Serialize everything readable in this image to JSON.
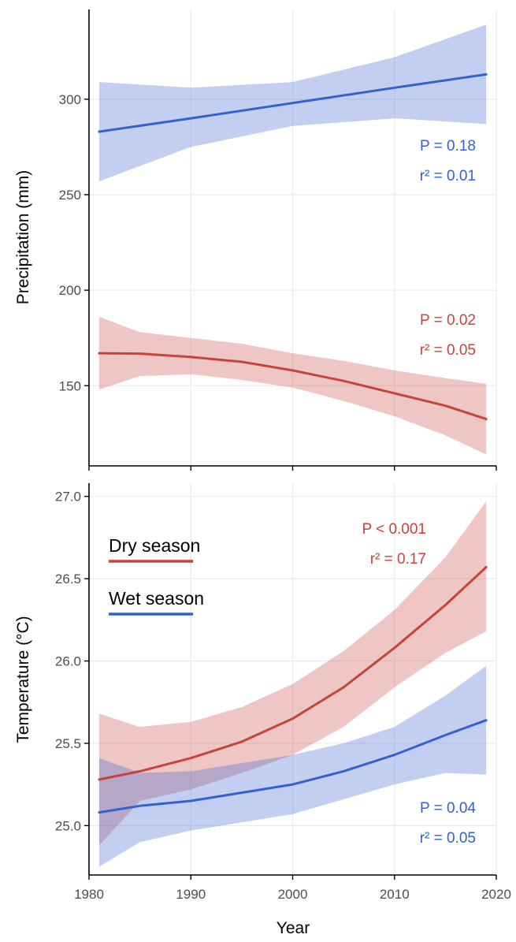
{
  "chart_data": [
    {
      "type": "line",
      "panel": "top",
      "ylabel": "Precipitation (mm)",
      "xlim": [
        1980,
        2020
      ],
      "ylim": [
        108,
        347
      ],
      "yticks": [
        150,
        200,
        250,
        300
      ],
      "xticks": [
        1980,
        1990,
        2000,
        2010,
        2020
      ],
      "grid": true,
      "series": [
        {
          "name": "Wet season",
          "color": "#3461D1",
          "x": [
            1981,
            1990,
            2000,
            2010,
            2019
          ],
          "y": [
            283,
            290,
            298,
            306,
            313
          ],
          "lower": [
            257,
            275,
            286,
            290,
            287
          ],
          "upper": [
            309,
            306,
            309,
            322,
            339
          ],
          "stats": [
            "P = 0.18",
            "r² = 0.01"
          ]
        },
        {
          "name": "Dry season",
          "color": "#C8433A",
          "x": [
            1981,
            1985,
            1990,
            1995,
            2000,
            2005,
            2010,
            2015,
            2019
          ],
          "y": [
            167,
            166.8,
            165,
            162.5,
            158,
            152.5,
            146,
            139.5,
            132.5
          ],
          "lower": [
            148,
            155,
            156,
            153,
            149,
            142,
            134,
            124,
            114
          ],
          "upper": [
            186,
            178,
            175,
            172,
            167,
            163,
            158,
            154,
            151
          ],
          "stats": [
            "P = 0.02",
            "r² = 0.05"
          ]
        }
      ]
    },
    {
      "type": "line",
      "panel": "bottom",
      "ylabel": "Temperature (°C)",
      "xlabel": "Year",
      "xlim": [
        1980,
        2020
      ],
      "ylim": [
        24.7,
        27.08
      ],
      "yticks": [
        "25.0",
        "25.5",
        "26.0",
        "26.5",
        "27.0"
      ],
      "xticks": [
        1980,
        1990,
        2000,
        2010,
        2020
      ],
      "grid": true,
      "legend": {
        "placement": "top-left",
        "entries": [
          "Dry season",
          "Wet season"
        ]
      },
      "series": [
        {
          "name": "Dry season",
          "color": "#C8433A",
          "x": [
            1981,
            1985,
            1990,
            1995,
            2000,
            2005,
            2010,
            2015,
            2019
          ],
          "y": [
            25.28,
            25.33,
            25.41,
            25.51,
            25.65,
            25.84,
            26.08,
            26.34,
            26.57
          ],
          "lower": [
            24.88,
            25.15,
            25.22,
            25.32,
            25.43,
            25.6,
            25.84,
            26.05,
            26.18
          ],
          "upper": [
            25.68,
            25.6,
            25.63,
            25.72,
            25.86,
            26.06,
            26.31,
            26.63,
            26.97
          ],
          "stats": [
            "P < 0.001",
            "r² = 0.17"
          ]
        },
        {
          "name": "Wet season",
          "color": "#3461D1",
          "x": [
            1981,
            1985,
            1990,
            1995,
            2000,
            2005,
            2010,
            2015,
            2019
          ],
          "y": [
            25.08,
            25.12,
            25.15,
            25.2,
            25.25,
            25.33,
            25.43,
            25.55,
            25.64
          ],
          "lower": [
            24.75,
            24.9,
            24.97,
            25.02,
            25.07,
            25.16,
            25.25,
            25.32,
            25.31
          ],
          "upper": [
            25.41,
            25.32,
            25.33,
            25.38,
            25.43,
            25.5,
            25.6,
            25.79,
            25.97
          ],
          "stats": [
            "P = 0.04",
            "r² = 0.05"
          ]
        }
      ]
    }
  ]
}
